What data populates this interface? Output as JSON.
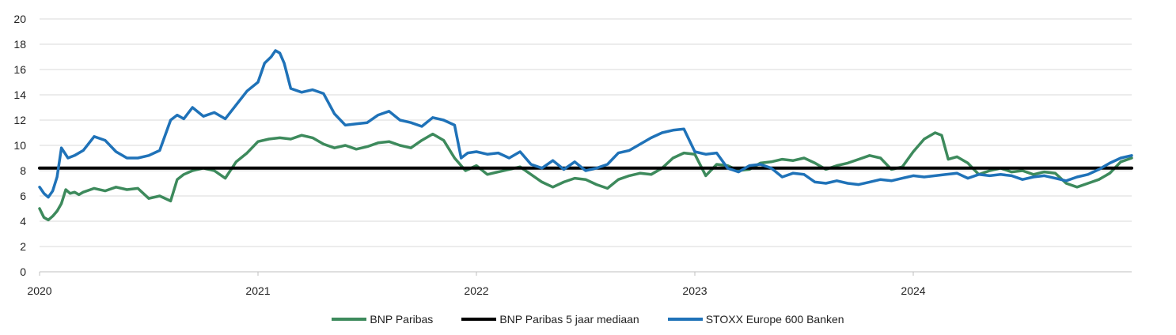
{
  "chart_data": {
    "type": "line",
    "title": "",
    "xlabel": "",
    "ylabel": "",
    "xlim": [
      2020.0,
      2025.0
    ],
    "ylim": [
      0,
      20
    ],
    "yticks": [
      0,
      2,
      4,
      6,
      8,
      10,
      12,
      14,
      16,
      18,
      20
    ],
    "xticks": [
      {
        "value": 2020,
        "label": "2020"
      },
      {
        "value": 2021,
        "label": "2021"
      },
      {
        "value": 2022,
        "label": "2022"
      },
      {
        "value": 2023,
        "label": "2023"
      },
      {
        "value": 2024,
        "label": "2024"
      }
    ],
    "grid": "horizontal",
    "legend_position": "bottom",
    "series": [
      {
        "name": "BNP Paribas",
        "color": "#3d8a5c",
        "x": [
          2020.0,
          2020.02,
          2020.04,
          2020.06,
          2020.08,
          2020.1,
          2020.12,
          2020.14,
          2020.16,
          2020.18,
          2020.2,
          2020.25,
          2020.3,
          2020.35,
          2020.4,
          2020.45,
          2020.5,
          2020.55,
          2020.6,
          2020.63,
          2020.66,
          2020.7,
          2020.75,
          2020.8,
          2020.85,
          2020.9,
          2020.95,
          2021.0,
          2021.05,
          2021.1,
          2021.15,
          2021.2,
          2021.25,
          2021.3,
          2021.35,
          2021.4,
          2021.45,
          2021.5,
          2021.55,
          2021.6,
          2021.65,
          2021.7,
          2021.75,
          2021.8,
          2021.85,
          2021.9,
          2021.95,
          2022.0,
          2022.05,
          2022.1,
          2022.15,
          2022.2,
          2022.25,
          2022.3,
          2022.35,
          2022.4,
          2022.45,
          2022.5,
          2022.55,
          2022.6,
          2022.65,
          2022.7,
          2022.75,
          2022.8,
          2022.85,
          2022.9,
          2022.95,
          2023.0,
          2023.05,
          2023.1,
          2023.15,
          2023.2,
          2023.25,
          2023.3,
          2023.35,
          2023.4,
          2023.45,
          2023.5,
          2023.55,
          2023.6,
          2023.65,
          2023.7,
          2023.75,
          2023.8,
          2023.85,
          2023.9,
          2023.95,
          2024.0,
          2024.05,
          2024.1,
          2024.13,
          2024.16,
          2024.2,
          2024.25,
          2024.3,
          2024.35,
          2024.4,
          2024.45,
          2024.5,
          2024.55,
          2024.6,
          2024.65,
          2024.7,
          2024.75,
          2024.8,
          2024.85,
          2024.9,
          2024.95,
          2025.0
        ],
        "values": [
          5.0,
          4.3,
          4.1,
          4.4,
          4.8,
          5.4,
          6.5,
          6.2,
          6.3,
          6.1,
          6.3,
          6.6,
          6.4,
          6.7,
          6.5,
          6.6,
          5.8,
          6.0,
          5.6,
          7.3,
          7.7,
          8.0,
          8.2,
          8.0,
          7.4,
          8.7,
          9.4,
          10.3,
          10.5,
          10.6,
          10.5,
          10.8,
          10.6,
          10.1,
          9.8,
          10.0,
          9.7,
          9.9,
          10.2,
          10.3,
          10.0,
          9.8,
          10.4,
          10.9,
          10.4,
          9.0,
          8.0,
          8.4,
          7.7,
          7.9,
          8.1,
          8.3,
          7.7,
          7.1,
          6.7,
          7.1,
          7.4,
          7.3,
          6.9,
          6.6,
          7.3,
          7.6,
          7.8,
          7.7,
          8.2,
          9.0,
          9.4,
          9.3,
          7.6,
          8.5,
          8.4,
          8.0,
          8.1,
          8.6,
          8.7,
          8.9,
          8.8,
          9.0,
          8.6,
          8.1,
          8.4,
          8.6,
          8.9,
          9.2,
          9.0,
          8.1,
          8.3,
          9.5,
          10.5,
          11.0,
          10.8,
          8.9,
          9.1,
          8.6,
          7.7,
          8.0,
          8.2,
          7.9,
          8.0,
          7.7,
          7.9,
          7.8,
          7.0,
          6.7,
          7.0,
          7.3,
          7.8,
          8.7,
          9.0
        ]
      },
      {
        "name": "BNP Paribas 5 jaar mediaan",
        "color": "#000000",
        "x": [
          2020.0,
          2025.0
        ],
        "values": [
          8.2,
          8.2
        ]
      },
      {
        "name": "STOXX Europe 600 Banken",
        "color": "#1f72b8",
        "x": [
          2020.0,
          2020.02,
          2020.04,
          2020.06,
          2020.08,
          2020.1,
          2020.13,
          2020.16,
          2020.2,
          2020.25,
          2020.3,
          2020.35,
          2020.4,
          2020.45,
          2020.5,
          2020.55,
          2020.6,
          2020.63,
          2020.66,
          2020.7,
          2020.75,
          2020.8,
          2020.85,
          2020.9,
          2020.95,
          2021.0,
          2021.03,
          2021.06,
          2021.08,
          2021.1,
          2021.12,
          2021.15,
          2021.2,
          2021.25,
          2021.3,
          2021.35,
          2021.4,
          2021.45,
          2021.5,
          2021.55,
          2021.6,
          2021.65,
          2021.7,
          2021.75,
          2021.8,
          2021.85,
          2021.9,
          2021.93,
          2021.96,
          2022.0,
          2022.05,
          2022.1,
          2022.15,
          2022.2,
          2022.25,
          2022.3,
          2022.35,
          2022.4,
          2022.45,
          2022.5,
          2022.55,
          2022.6,
          2022.65,
          2022.7,
          2022.75,
          2022.8,
          2022.85,
          2022.9,
          2022.95,
          2023.0,
          2023.05,
          2023.1,
          2023.15,
          2023.2,
          2023.25,
          2023.3,
          2023.35,
          2023.4,
          2023.45,
          2023.5,
          2023.55,
          2023.6,
          2023.65,
          2023.7,
          2023.75,
          2023.8,
          2023.85,
          2023.9,
          2023.95,
          2024.0,
          2024.05,
          2024.1,
          2024.15,
          2024.2,
          2024.25,
          2024.3,
          2024.35,
          2024.4,
          2024.45,
          2024.5,
          2024.55,
          2024.6,
          2024.65,
          2024.7,
          2024.75,
          2024.8,
          2024.85,
          2024.9,
          2024.95,
          2025.0
        ],
        "values": [
          6.7,
          6.2,
          5.9,
          6.4,
          7.5,
          9.8,
          9.0,
          9.2,
          9.6,
          10.7,
          10.4,
          9.5,
          9.0,
          9.0,
          9.2,
          9.6,
          12.0,
          12.4,
          12.1,
          13.0,
          12.3,
          12.6,
          12.1,
          13.2,
          14.3,
          15.0,
          16.5,
          17.0,
          17.5,
          17.3,
          16.5,
          14.5,
          14.2,
          14.4,
          14.1,
          12.5,
          11.6,
          11.7,
          11.8,
          12.4,
          12.7,
          12.0,
          11.8,
          11.5,
          12.2,
          12.0,
          11.6,
          9.0,
          9.4,
          9.5,
          9.3,
          9.4,
          9.0,
          9.5,
          8.5,
          8.2,
          8.8,
          8.1,
          8.7,
          8.0,
          8.2,
          8.5,
          9.4,
          9.6,
          10.1,
          10.6,
          11.0,
          11.2,
          11.3,
          9.5,
          9.3,
          9.4,
          8.2,
          7.9,
          8.4,
          8.5,
          8.2,
          7.5,
          7.8,
          7.7,
          7.1,
          7.0,
          7.2,
          7.0,
          6.9,
          7.1,
          7.3,
          7.2,
          7.4,
          7.6,
          7.5,
          7.6,
          7.7,
          7.8,
          7.4,
          7.7,
          7.6,
          7.7,
          7.6,
          7.3,
          7.5,
          7.6,
          7.4,
          7.2,
          7.5,
          7.7,
          8.1,
          8.6,
          9.0,
          9.2
        ]
      }
    ]
  }
}
